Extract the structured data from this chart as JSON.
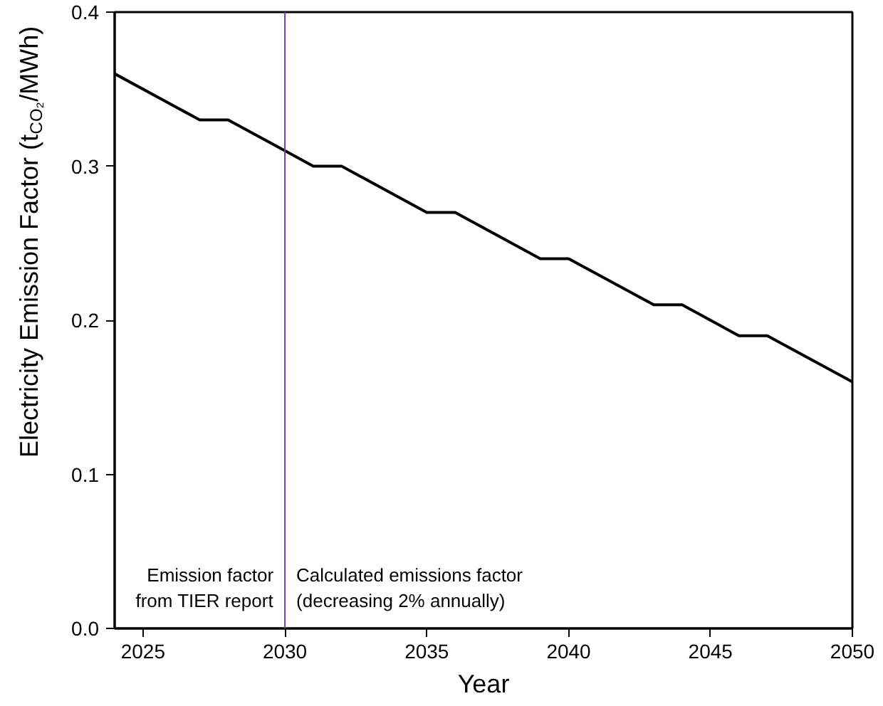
{
  "chart_data": {
    "type": "line",
    "xlabel": "Year",
    "ylabel": "Electricity Emission Factor (t$_{CO₂}$/MWh)",
    "x": [
      2024,
      2027,
      2028,
      2030,
      2031,
      2032,
      2035,
      2036,
      2039,
      2040,
      2043,
      2044,
      2046,
      2047,
      2050
    ],
    "series": [
      {
        "color": "#000000",
        "values": [
          0.36,
          0.33,
          0.33,
          0.31,
          0.3,
          0.3,
          0.27,
          0.27,
          0.24,
          0.24,
          0.21,
          0.21,
          0.19,
          0.19,
          0.16
        ]
      }
    ],
    "xlim": [
      2024,
      2050
    ],
    "xticks": [
      2025,
      2030,
      2035,
      2040,
      2045,
      2050
    ],
    "ylim": [
      0,
      0.4
    ],
    "yticks": [
      {
        "value": 0,
        "label": "0.0"
      },
      0.1,
      0.2,
      0.3,
      0.4
    ],
    "ref_lines": [
      {
        "axis": "x",
        "value": 2030,
        "color": "#6a3fb5"
      }
    ],
    "annotations": [
      "Emission factor\nfrom TIER report",
      "Calculated emissions factor\n(decreasing 2% annually)"
    ],
    "grid": false,
    "marker": "none",
    "line_style": "solid"
  }
}
